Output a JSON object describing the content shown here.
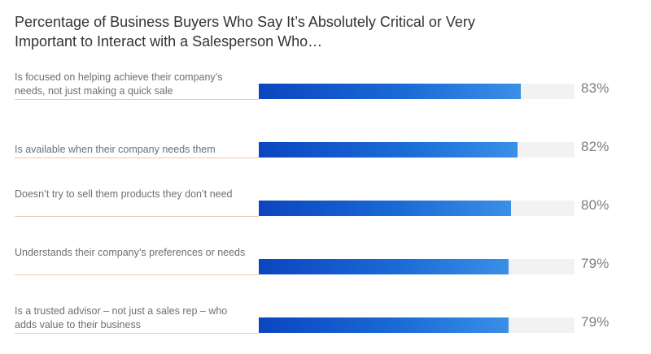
{
  "chart_data": {
    "type": "bar",
    "orientation": "horizontal",
    "title": "Percentage of Business Buyers Who Say It’s Absolutely Critical or Very Important to Interact with a Salesperson Who…",
    "unit": "%",
    "xlim": [
      0,
      100
    ],
    "grid": false,
    "legend": "none",
    "colors": {
      "bar_start": "#0b45c0",
      "bar_end": "#3a8fe6",
      "track": "#f2f2f2",
      "rule": "#f0c7ad"
    },
    "categories": [
      "Is focused on helping achieve their company’s needs, not just making a quick sale",
      "Is available when their company needs them",
      "Doesn’t try to sell them products they don’t need",
      "Understands their company’s preferences or needs",
      "Is a trusted advisor – not just a sales rep – who adds value to their business"
    ],
    "values": [
      83,
      82,
      80,
      79,
      79
    ],
    "value_labels": [
      "83%",
      "82%",
      "80%",
      "79%",
      "79%"
    ]
  }
}
